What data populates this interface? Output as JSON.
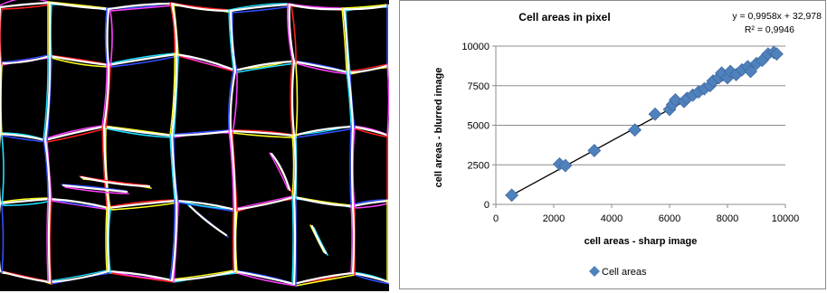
{
  "image": {
    "label": "cell membrane overlay",
    "colors": [
      "#ffffff",
      "#ff2020",
      "#20e0ff",
      "#ff40ff",
      "#ffff20",
      "#3050ff"
    ]
  },
  "chart_data": {
    "type": "scatter",
    "title": "Cell areas in pixel",
    "xlabel": "cell areas - sharp image",
    "ylabel": "cell areas - blurred image",
    "xlim": [
      0,
      10000
    ],
    "ylim": [
      0,
      10000
    ],
    "xticks": [
      "0",
      "2000",
      "4000",
      "6000",
      "8000",
      "10000"
    ],
    "yticks": [
      "0",
      "2500",
      "5000",
      "7500",
      "10000"
    ],
    "ytick_values": [
      0,
      2500,
      5000,
      7500,
      10000
    ],
    "grid": "horizontal",
    "legend": {
      "position": "bottom",
      "label": "Cell areas",
      "marker": "diamond"
    },
    "marker_color": "#4f81bd",
    "trendline": {
      "equation": "y = 0,9958x + 32,978",
      "r2": "R² = 0,9946",
      "slope": 0.9958,
      "intercept": 32.978
    },
    "series": [
      {
        "name": "Cell areas",
        "points": [
          [
            550,
            580
          ],
          [
            2200,
            2550
          ],
          [
            2400,
            2450
          ],
          [
            3400,
            3400
          ],
          [
            4800,
            4700
          ],
          [
            5500,
            5700
          ],
          [
            6000,
            6000
          ],
          [
            6100,
            6300
          ],
          [
            6200,
            6600
          ],
          [
            6500,
            6500
          ],
          [
            6600,
            6700
          ],
          [
            6800,
            6900
          ],
          [
            7000,
            7100
          ],
          [
            7200,
            7300
          ],
          [
            7400,
            7500
          ],
          [
            7500,
            7800
          ],
          [
            7700,
            8000
          ],
          [
            7800,
            8300
          ],
          [
            8000,
            8000
          ],
          [
            8100,
            8400
          ],
          [
            8300,
            8200
          ],
          [
            8500,
            8500
          ],
          [
            8700,
            8700
          ],
          [
            8800,
            8400
          ],
          [
            9000,
            8900
          ],
          [
            9200,
            9100
          ],
          [
            9400,
            9500
          ],
          [
            9600,
            9600
          ],
          [
            9700,
            9500
          ]
        ]
      }
    ]
  }
}
